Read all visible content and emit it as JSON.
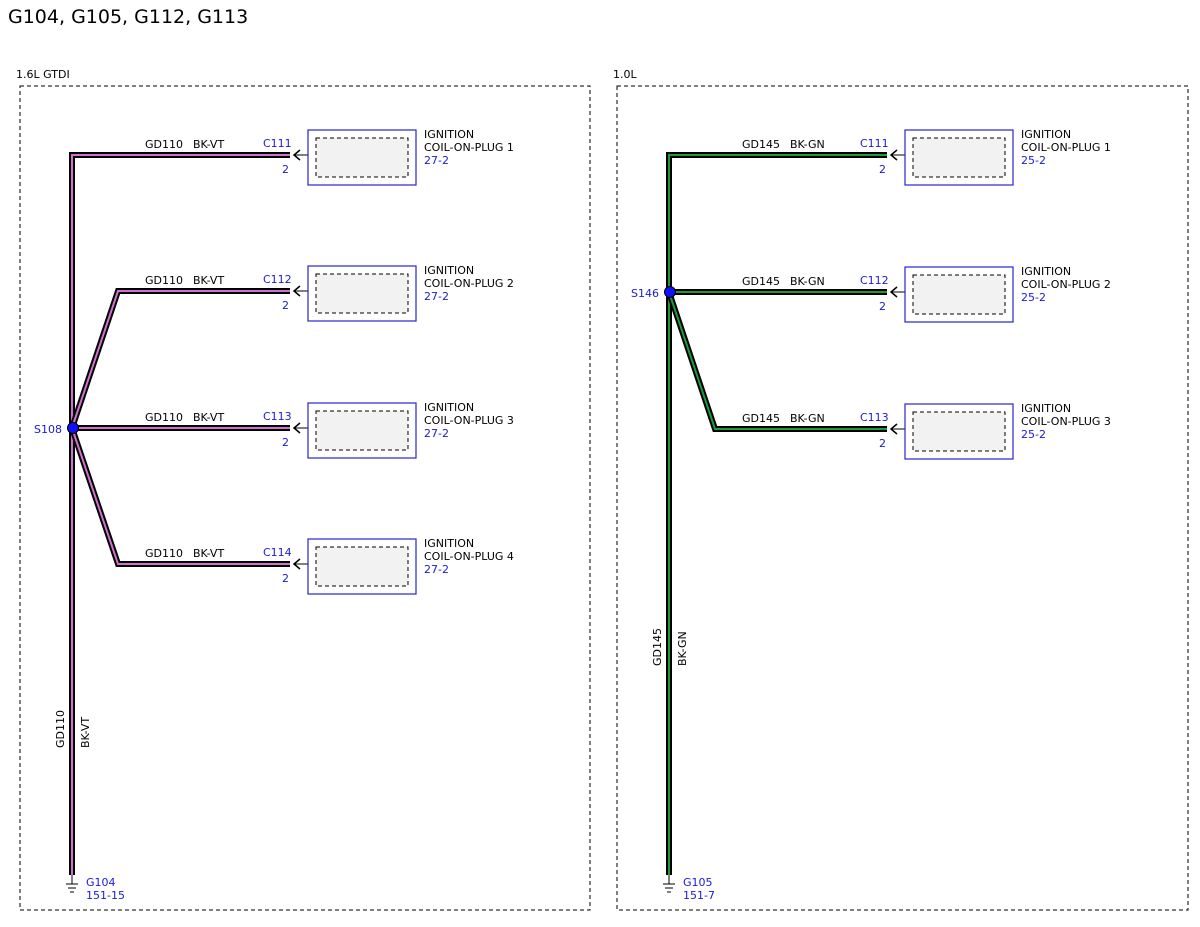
{
  "title": "G104, G105, G112, G113",
  "panels": [
    {
      "label": "1.6L GTDI",
      "splice": "S108",
      "trunk": {
        "circuit": "GD110",
        "color": "BK-VT"
      },
      "ground": {
        "id": "G104",
        "ref": "151-15"
      },
      "branches": [
        {
          "circuit": "GD110",
          "color": "BK-VT",
          "connector": "C111",
          "pin": "2",
          "name": [
            "IGNITION",
            "COIL-ON-PLUG 1"
          ],
          "ref": "27-2"
        },
        {
          "circuit": "GD110",
          "color": "BK-VT",
          "connector": "C112",
          "pin": "2",
          "name": [
            "IGNITION",
            "COIL-ON-PLUG 2"
          ],
          "ref": "27-2"
        },
        {
          "circuit": "GD110",
          "color": "BK-VT",
          "connector": "C113",
          "pin": "2",
          "name": [
            "IGNITION",
            "COIL-ON-PLUG 3"
          ],
          "ref": "27-2"
        },
        {
          "circuit": "GD110",
          "color": "BK-VT",
          "connector": "C114",
          "pin": "2",
          "name": [
            "IGNITION",
            "COIL-ON-PLUG 4"
          ],
          "ref": "27-2"
        }
      ]
    },
    {
      "label": "1.0L",
      "splice": "S146",
      "trunk": {
        "circuit": "GD145",
        "color": "BK-GN"
      },
      "ground": {
        "id": "G105",
        "ref": "151-7"
      },
      "branches": [
        {
          "circuit": "GD145",
          "color": "BK-GN",
          "connector": "C111",
          "pin": "2",
          "name": [
            "IGNITION",
            "COIL-ON-PLUG 1"
          ],
          "ref": "25-2"
        },
        {
          "circuit": "GD145",
          "color": "BK-GN",
          "connector": "C112",
          "pin": "2",
          "name": [
            "IGNITION",
            "COIL-ON-PLUG 2"
          ],
          "ref": "25-2"
        },
        {
          "circuit": "GD145",
          "color": "BK-GN",
          "connector": "C113",
          "pin": "2",
          "name": [
            "IGNITION",
            "COIL-ON-PLUG 3"
          ],
          "ref": "25-2"
        }
      ]
    }
  ]
}
